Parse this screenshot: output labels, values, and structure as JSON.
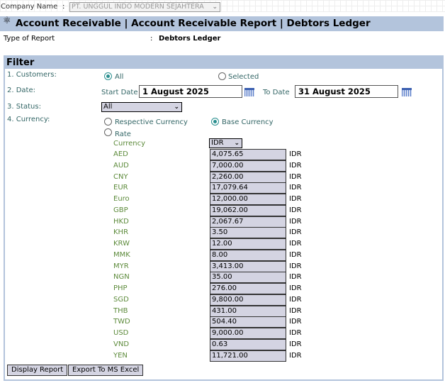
{
  "company": {
    "label": "Company Name",
    "sep": ":",
    "value": "PT. UNGGUL INDO MODERN SEJAHTERA"
  },
  "header": {
    "title": "Account Receivable | Account Receivable Report | Debtors Ledger",
    "icon": "money-bag-icon"
  },
  "report_type": {
    "label": "Type of Report",
    "sep": ":",
    "value": "Debtors Ledger"
  },
  "filter": {
    "title": "Filter",
    "customers": {
      "label": "1. Customers:",
      "options": [
        "All",
        "Selected"
      ],
      "selected": "All"
    },
    "date": {
      "label": "2. Date:",
      "start_label": "Start Date",
      "start_value": "1 August    2025",
      "to_label": "To Date",
      "to_value": "31 August    2025"
    },
    "status": {
      "label": "3. Status:",
      "value": "All"
    },
    "currency": {
      "label": "4. Currency:",
      "options": [
        "Respective Currency",
        "Base Currency",
        "Rate"
      ],
      "selected": "Base Currency",
      "currency_label": "Currency",
      "currency_value": "IDR"
    },
    "rates": [
      {
        "code": "AED",
        "rate": "4,075.65",
        "base": "IDR"
      },
      {
        "code": "AUD",
        "rate": "7,000.00",
        "base": "IDR"
      },
      {
        "code": "CNY",
        "rate": "2,260.00",
        "base": "IDR"
      },
      {
        "code": "EUR",
        "rate": "17,079.64",
        "base": "IDR"
      },
      {
        "code": "Euro",
        "rate": "12,000.00",
        "base": "IDR"
      },
      {
        "code": "GBP",
        "rate": "19,062.00",
        "base": "IDR"
      },
      {
        "code": "HKD",
        "rate": "2,067.67",
        "base": "IDR"
      },
      {
        "code": "KHR",
        "rate": "3.50",
        "base": "IDR"
      },
      {
        "code": "KRW",
        "rate": "12.00",
        "base": "IDR"
      },
      {
        "code": "MMK",
        "rate": "8.00",
        "base": "IDR"
      },
      {
        "code": "MYR",
        "rate": "3,413.00",
        "base": "IDR"
      },
      {
        "code": "NGN",
        "rate": "35.00",
        "base": "IDR"
      },
      {
        "code": "PHP",
        "rate": "276.00",
        "base": "IDR"
      },
      {
        "code": "SGD",
        "rate": "9,800.00",
        "base": "IDR"
      },
      {
        "code": "THB",
        "rate": "431.00",
        "base": "IDR"
      },
      {
        "code": "TWD",
        "rate": "504.40",
        "base": "IDR"
      },
      {
        "code": "USD",
        "rate": "9,000.00",
        "base": "IDR"
      },
      {
        "code": "VND",
        "rate": "0.63",
        "base": "IDR"
      },
      {
        "code": "YEN",
        "rate": "11,721.00",
        "base": "IDR"
      }
    ]
  },
  "buttons": {
    "display": "Display Report",
    "export": "Export To MS Excel"
  }
}
